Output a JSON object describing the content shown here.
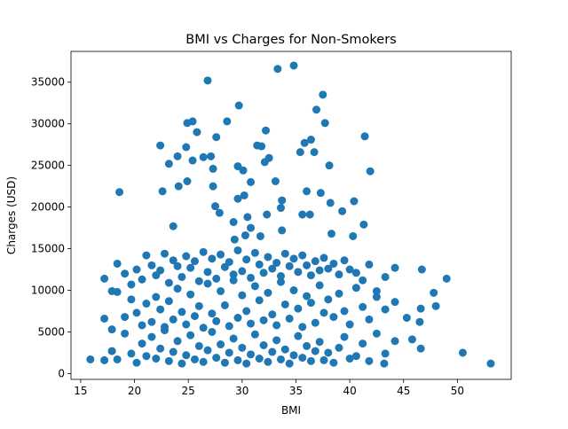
{
  "chart_data": {
    "type": "scatter",
    "title": "BMI vs Charges for Non-Smokers",
    "xlabel": "BMI",
    "ylabel": "Charges (USD)",
    "xlim": [
      14.1,
      55.0
    ],
    "ylim": [
      -700,
      38700
    ],
    "xticks": [
      15,
      20,
      25,
      30,
      35,
      40,
      45,
      50
    ],
    "yticks": [
      0,
      5000,
      10000,
      15000,
      20000,
      25000,
      30000,
      35000
    ],
    "color": "#1f77b4",
    "x": [
      17.2,
      17.9,
      18.4,
      19.1,
      19.7,
      20.2,
      20.7,
      21.1,
      21.6,
      22.0,
      22.4,
      22.8,
      23.2,
      23.6,
      24.0,
      24.4,
      24.8,
      25.2,
      25.6,
      26.0,
      26.4,
      26.8,
      27.2,
      27.6,
      28.0,
      28.4,
      28.8,
      29.2,
      29.6,
      30.0,
      30.4,
      30.8,
      31.2,
      31.6,
      32.0,
      32.4,
      32.8,
      33.2,
      33.6,
      34.0,
      34.4,
      34.8,
      35.2,
      35.6,
      36.0,
      36.4,
      36.8,
      37.2,
      37.6,
      38.0,
      38.5,
      39.0,
      39.5,
      40.0,
      40.6,
      41.2,
      41.8,
      42.5,
      43.3,
      44.2,
      17.2,
      17.9,
      18.4,
      19.1,
      19.7,
      20.2,
      20.7,
      21.1,
      21.6,
      22.0,
      22.4,
      22.8,
      23.2,
      23.6,
      24.0,
      24.4,
      24.8,
      25.2,
      25.6,
      26.0,
      26.4,
      26.8,
      27.2,
      27.6,
      28.0,
      28.4,
      28.8,
      29.2,
      29.6,
      30.0,
      30.4,
      30.8,
      31.2,
      31.6,
      32.0,
      32.4,
      32.8,
      33.2,
      33.6,
      34.0,
      34.4,
      34.8,
      35.2,
      35.6,
      36.0,
      36.4,
      36.8,
      37.2,
      37.6,
      38.0,
      38.5,
      39.0,
      39.5,
      40.0,
      40.6,
      41.2,
      41.8,
      42.5,
      43.3,
      44.2,
      17.2,
      17.9,
      18.4,
      19.1,
      19.7,
      20.2,
      20.7,
      21.1,
      21.6,
      22.0,
      22.4,
      22.8,
      23.2,
      23.6,
      24.0,
      24.4,
      24.8,
      25.2,
      25.6,
      26.0,
      26.4,
      26.8,
      27.2,
      27.6,
      28.0,
      28.4,
      28.8,
      29.2,
      29.6,
      30.0,
      30.4,
      30.8,
      31.2,
      31.6,
      32.0,
      32.4,
      32.8,
      33.2,
      33.6,
      34.0,
      34.4,
      34.8,
      35.2,
      35.6,
      36.0,
      36.4,
      36.8,
      37.2,
      37.6,
      38.0,
      38.5,
      39.0,
      39.5,
      40.0,
      40.6,
      41.2,
      41.8,
      42.5,
      43.3,
      44.2,
      15.9,
      18.6,
      26.8,
      33.3,
      34.8,
      29.7,
      37.5,
      36.9,
      37.7,
      24.9,
      25.4,
      28.6,
      25.8,
      32.2,
      41.4,
      22.4,
      31.4,
      31.8,
      36.4,
      35.8,
      35.4,
      36.7,
      27.6,
      24.8,
      24.0,
      26.4,
      27.1,
      27.3,
      23.2,
      25.4,
      38.1,
      29.6,
      30.1,
      32.1,
      32.5,
      41.9,
      22.6,
      24.1,
      24.9,
      27.3,
      30.8,
      33.1,
      30.2,
      29.6,
      33.7,
      36.0,
      37.3,
      38.2,
      40.4,
      39.3,
      27.5,
      27.9,
      30.5,
      32.3,
      33.6,
      35.6,
      36.3,
      23.6,
      29.2,
      41.3,
      30.8,
      33.7,
      29.3,
      30.3,
      31.7,
      38.3,
      40.3,
      50.5,
      53.1,
      49.0,
      46.7,
      47.8,
      46.6,
      46.5,
      45.8,
      45.3,
      43.2,
      46.6,
      48.0
    ],
    "values": [
      1600,
      2700,
      1700,
      4800,
      2400,
      1300,
      3600,
      2100,
      4400,
      1800,
      3000,
      5200,
      1500,
      2600,
      3900,
      1200,
      2200,
      4600,
      1700,
      3300,
      1400,
      2800,
      5000,
      1900,
      3500,
      1300,
      2500,
      4200,
      1600,
      3100,
      1200,
      2300,
      4700,
      1800,
      3400,
      1400,
      2600,
      4000,
      1700,
      2900,
      1200,
      2200,
      4500,
      1900,
      3300,
      1500,
      2700,
      3800,
      1600,
      2500,
      1300,
      3100,
      4400,
      1800,
      2100,
      3600,
      1500,
      4800,
      2400,
      3900,
      6600,
      5300,
      9800,
      6800,
      8900,
      7300,
      5800,
      8400,
      6200,
      9200,
      7700,
      5600,
      8700,
      6500,
      10200,
      7400,
      5900,
      9500,
      6900,
      8100,
      5500,
      10800,
      7200,
      6300,
      9900,
      8200,
      5700,
      11200,
      6700,
      9400,
      7500,
      6000,
      10500,
      8800,
      6400,
      9700,
      7100,
      5800,
      11000,
      8300,
      6600,
      10000,
      7800,
      5600,
      9300,
      8500,
      6100,
      10600,
      7300,
      8900,
      6800,
      9600,
      7500,
      5900,
      10300,
      8000,
      6500,
      9200,
      7700,
      8600,
      11400,
      9900,
      13200,
      12000,
      10700,
      12500,
      11300,
      14200,
      13000,
      11800,
      12400,
      14400,
      10900,
      13600,
      12900,
      11600,
      14100,
      12700,
      13500,
      11100,
      14600,
      12200,
      13800,
      11400,
      14300,
      12800,
      13400,
      11900,
      14800,
      12300,
      13700,
      11500,
      14500,
      13100,
      12100,
      14000,
      12600,
      13300,
      11700,
      14400,
      12900,
      13800,
      12200,
      14200,
      13000,
      11800,
      13500,
      12400,
      13900,
      12600,
      13200,
      11900,
      13600,
      12500,
      12100,
      11200,
      13100,
      9900,
      11600,
      12700,
      1700,
      21800,
      35200,
      36600,
      37000,
      32200,
      33500,
      31700,
      30100,
      30100,
      30300,
      30300,
      29000,
      29200,
      28500,
      27400,
      27400,
      27300,
      28100,
      27700,
      26600,
      26600,
      28400,
      27200,
      26100,
      26000,
      26100,
      24600,
      25200,
      25600,
      25000,
      24900,
      24400,
      25400,
      25900,
      24300,
      21900,
      22500,
      23100,
      22500,
      23000,
      23100,
      21400,
      21000,
      20800,
      21900,
      21700,
      20500,
      20700,
      19500,
      20100,
      19300,
      18800,
      19100,
      19900,
      19100,
      19100,
      17700,
      18200,
      17900,
      17500,
      17200,
      16100,
      16600,
      16500,
      16800,
      16500,
      2500,
      1200,
      11400,
      12500,
      9700,
      7800,
      6200,
      4100,
      6700,
      1200,
      3000,
      8100
    ]
  }
}
